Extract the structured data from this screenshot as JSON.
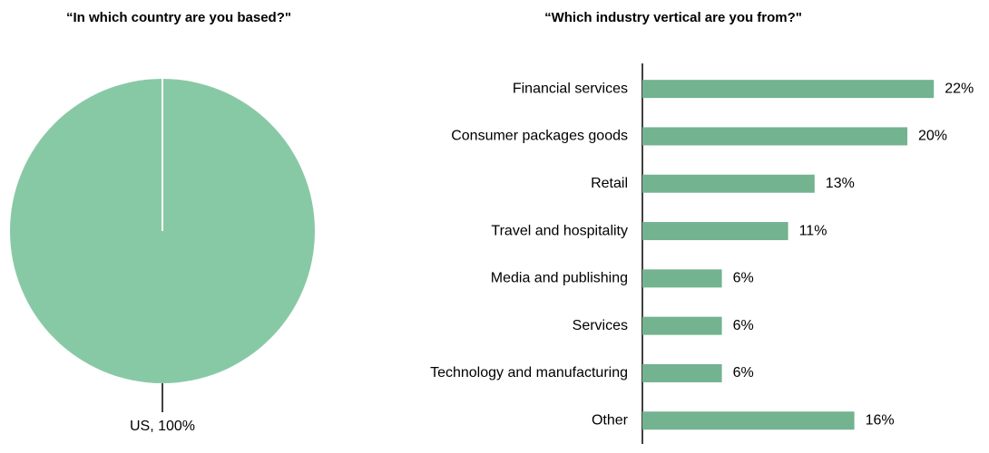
{
  "chart_data": [
    {
      "type": "pie",
      "title": "“In which country are you based?\"",
      "categories": [
        "US"
      ],
      "values": [
        100
      ],
      "value_labels": [
        "US, 100%"
      ],
      "colors": [
        "#88c9a5"
      ]
    },
    {
      "type": "bar",
      "orientation": "horizontal",
      "title": "“Which industry vertical are you from?\"",
      "categories": [
        "Financial services",
        "Consumer packages goods",
        "Retail",
        "Travel and hospitality",
        "Media and publishing",
        "Services",
        "Technology and manufacturing",
        "Other"
      ],
      "values": [
        22,
        20,
        13,
        11,
        6,
        6,
        6,
        16
      ],
      "value_labels": [
        "22%",
        "20%",
        "13%",
        "11%",
        "6%",
        "6%",
        "6%",
        "16%"
      ],
      "color": "#73b38f"
    }
  ]
}
